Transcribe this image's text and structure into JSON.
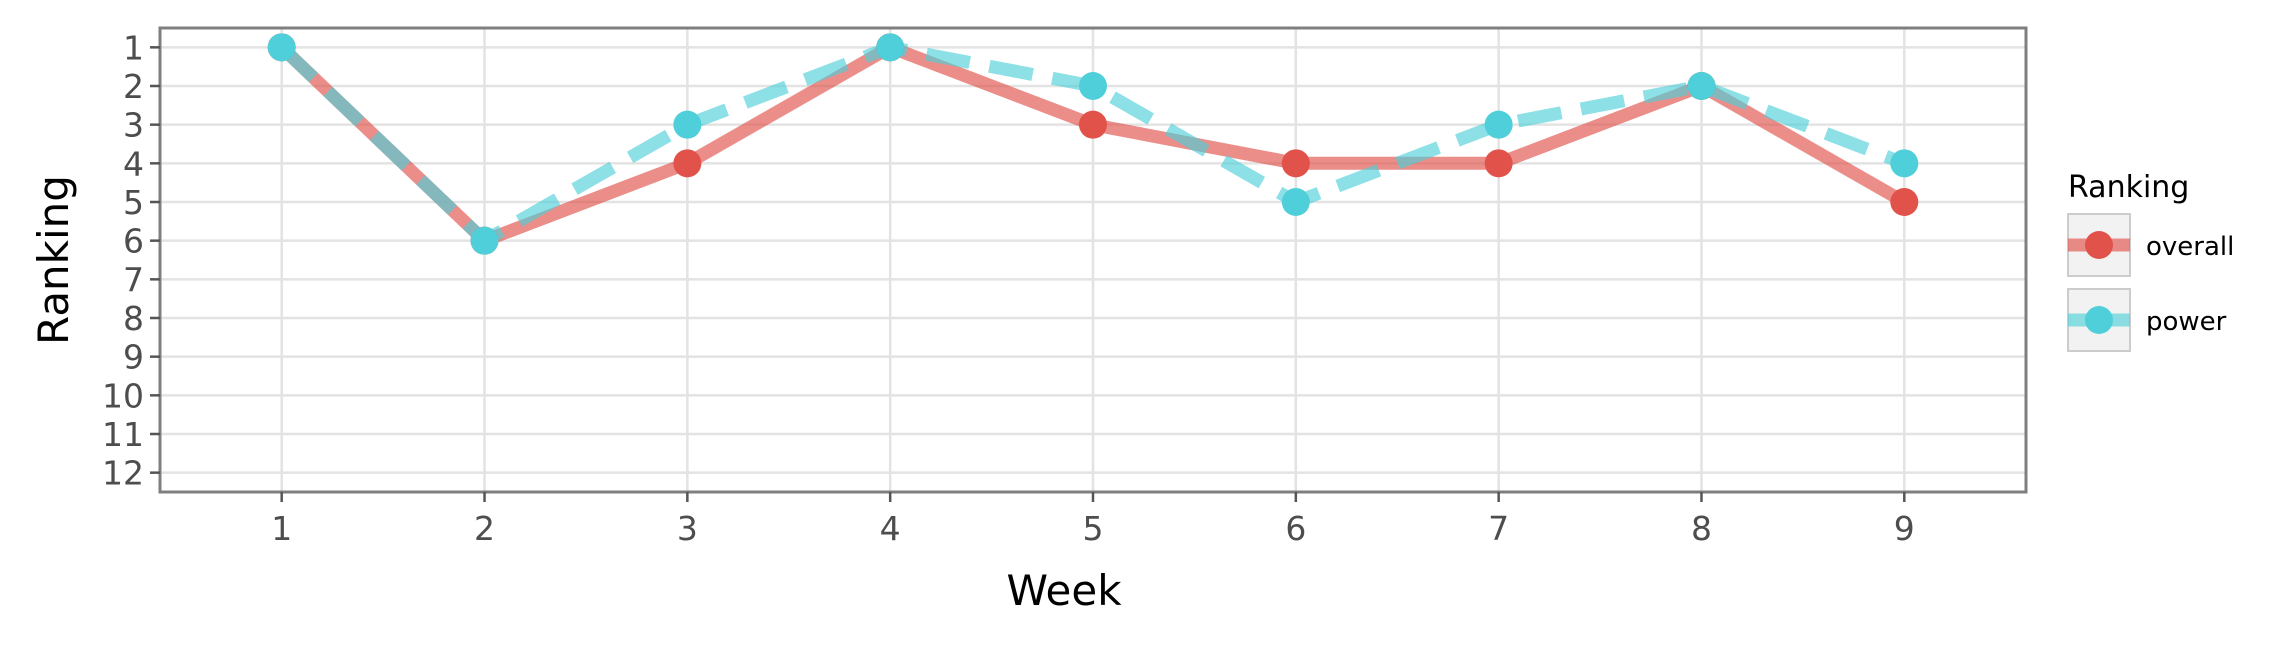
{
  "chart_data": {
    "type": "line",
    "title": "",
    "xlabel": "Week",
    "ylabel": "Ranking",
    "x": [
      1,
      2,
      3,
      4,
      5,
      6,
      7,
      8,
      9
    ],
    "x_ticks": [
      "1",
      "2",
      "3",
      "4",
      "5",
      "6",
      "7",
      "8",
      "9"
    ],
    "y_ticks": [
      "1",
      "2",
      "3",
      "4",
      "5",
      "6",
      "7",
      "8",
      "9",
      "10",
      "11",
      "12"
    ],
    "xlim": [
      0.4,
      9.6
    ],
    "ylim": [
      12.5,
      0.5
    ],
    "y_reversed": true,
    "grid": true,
    "legend": {
      "title": "Ranking",
      "placement": "right"
    },
    "series": [
      {
        "name": "overall",
        "values": [
          1,
          6,
          4,
          1,
          3,
          4,
          4,
          2,
          5
        ],
        "color": "#E0524A",
        "line_style": "solid"
      },
      {
        "name": "power",
        "values": [
          1,
          6,
          3,
          1,
          2,
          5,
          3,
          2,
          4
        ],
        "color": "#4FCFD9",
        "line_style": "dashed"
      }
    ]
  }
}
